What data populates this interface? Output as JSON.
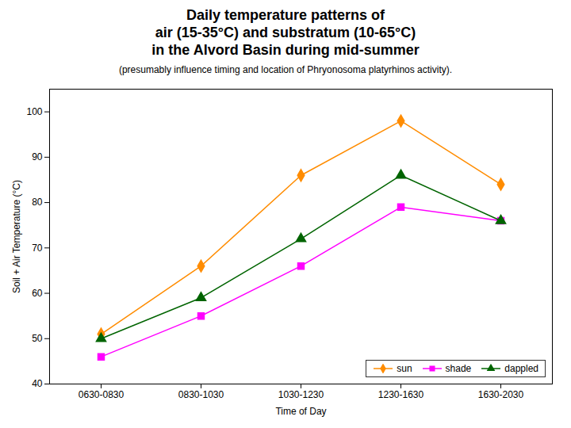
{
  "chart_data": {
    "type": "line",
    "title": [
      "Daily temperature patterns of",
      "air (15-35°C) and substratum (10-65°C)",
      "in the Alvord Basin during mid-summer"
    ],
    "subtitle": "(presumably influence timing and location of Phryonosoma platyrhinos activity).",
    "x_label": "Time of Day",
    "y_label": "Soil + Air Temperature (°C)",
    "categories": [
      "0630-0830",
      "0830-1030",
      "1030-1230",
      "1230-1630",
      "1630-2030"
    ],
    "series": [
      {
        "name": "sun",
        "color": "#FF8C00",
        "marker": "diamond",
        "values": [
          51,
          66,
          86,
          98,
          84
        ]
      },
      {
        "name": "shade",
        "color": "#FF00FF",
        "marker": "square",
        "values": [
          46,
          55,
          66,
          79,
          76
        ]
      },
      {
        "name": "dappled",
        "color": "#006400",
        "marker": "triangle",
        "values": [
          50,
          59,
          72,
          86,
          76
        ]
      }
    ],
    "ylim": [
      40,
      105
    ],
    "yticks": [
      40,
      50,
      60,
      70,
      80,
      90,
      100
    ],
    "grid": false,
    "legend": "lower right"
  }
}
